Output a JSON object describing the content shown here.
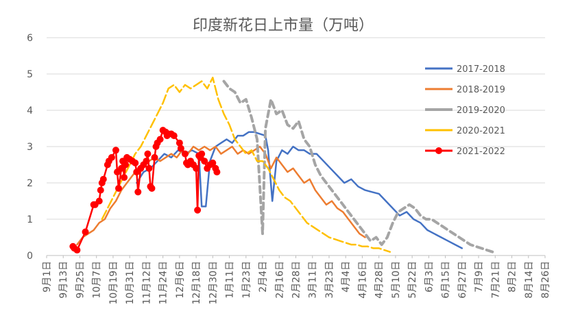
{
  "chart_data": {
    "type": "line",
    "title": "印度新花日上市量（万吨）",
    "xlabel": "",
    "ylabel": "",
    "ylim": [
      0,
      6
    ],
    "yticks": [
      "0",
      "1",
      "2",
      "3",
      "4",
      "5",
      "6"
    ],
    "x_tick_labels": [
      "9月1日",
      "9月13日",
      "9月25日",
      "10月7日",
      "10月19日",
      "10月31日",
      "11月12日",
      "11月24日",
      "12月6日",
      "12月18日",
      "12月30日",
      "1月11日",
      "1月23日",
      "2月4日",
      "2月16日",
      "2月28日",
      "3月11日",
      "3月23日",
      "4月4日",
      "4月16日",
      "4月28日",
      "5月10日",
      "5月22日",
      "6月3日",
      "6月15日",
      "6月27日",
      "7月9日",
      "7月21日",
      "8月2日",
      "8月14日",
      "8月26日"
    ],
    "grid": "horizontal",
    "legend_position": "right",
    "series": [
      {
        "name": "2017-2018",
        "color": "#4472c4",
        "style": "solid",
        "points": [
          [
            65,
            2.0
          ],
          [
            70,
            2.3
          ],
          [
            75,
            2.4
          ],
          [
            80,
            2.6
          ],
          [
            85,
            2.8
          ],
          [
            90,
            2.7
          ],
          [
            95,
            2.9
          ],
          [
            100,
            2.8
          ],
          [
            105,
            2.9
          ],
          [
            110,
            2.8
          ],
          [
            112,
            1.35
          ],
          [
            115,
            1.35
          ],
          [
            118,
            2.6
          ],
          [
            122,
            3.0
          ],
          [
            126,
            3.1
          ],
          [
            130,
            3.2
          ],
          [
            134,
            3.1
          ],
          [
            138,
            3.3
          ],
          [
            142,
            3.3
          ],
          [
            146,
            3.4
          ],
          [
            150,
            3.4
          ],
          [
            154,
            3.35
          ],
          [
            158,
            3.3
          ],
          [
            160,
            2.9
          ],
          [
            163,
            1.5
          ],
          [
            166,
            2.6
          ],
          [
            170,
            2.9
          ],
          [
            174,
            2.8
          ],
          [
            178,
            3.0
          ],
          [
            182,
            2.9
          ],
          [
            186,
            2.9
          ],
          [
            190,
            2.8
          ],
          [
            195,
            2.8
          ],
          [
            200,
            2.6
          ],
          [
            205,
            2.4
          ],
          [
            210,
            2.2
          ],
          [
            215,
            2.0
          ],
          [
            220,
            2.1
          ],
          [
            225,
            1.9
          ],
          [
            230,
            1.8
          ],
          [
            235,
            1.75
          ],
          [
            240,
            1.7
          ],
          [
            245,
            1.5
          ],
          [
            250,
            1.3
          ],
          [
            255,
            1.1
          ],
          [
            260,
            1.2
          ],
          [
            265,
            1.0
          ],
          [
            270,
            0.9
          ],
          [
            275,
            0.7
          ],
          [
            280,
            0.6
          ],
          [
            285,
            0.5
          ],
          [
            290,
            0.4
          ],
          [
            295,
            0.3
          ],
          [
            300,
            0.2
          ]
        ]
      },
      {
        "name": "2018-2019",
        "color": "#ed7d31",
        "style": "solid",
        "points": [
          [
            22,
            0.3
          ],
          [
            26,
            0.5
          ],
          [
            30,
            0.6
          ],
          [
            34,
            0.7
          ],
          [
            38,
            0.9
          ],
          [
            42,
            1.0
          ],
          [
            46,
            1.3
          ],
          [
            50,
            1.5
          ],
          [
            54,
            1.8
          ],
          [
            58,
            2.0
          ],
          [
            62,
            2.2
          ],
          [
            66,
            2.4
          ],
          [
            70,
            2.5
          ],
          [
            74,
            2.6
          ],
          [
            78,
            2.7
          ],
          [
            82,
            2.6
          ],
          [
            86,
            2.7
          ],
          [
            90,
            2.8
          ],
          [
            94,
            2.7
          ],
          [
            98,
            2.9
          ],
          [
            102,
            2.8
          ],
          [
            106,
            3.0
          ],
          [
            110,
            2.9
          ],
          [
            114,
            3.0
          ],
          [
            118,
            2.9
          ],
          [
            122,
            3.0
          ],
          [
            126,
            2.8
          ],
          [
            130,
            2.9
          ],
          [
            134,
            3.0
          ],
          [
            138,
            2.8
          ],
          [
            142,
            2.9
          ],
          [
            146,
            2.8
          ],
          [
            150,
            2.9
          ],
          [
            154,
            3.0
          ],
          [
            158,
            2.8
          ],
          [
            162,
            2.4
          ],
          [
            166,
            2.7
          ],
          [
            170,
            2.5
          ],
          [
            174,
            2.3
          ],
          [
            178,
            2.4
          ],
          [
            182,
            2.2
          ],
          [
            186,
            2.0
          ],
          [
            190,
            2.1
          ],
          [
            194,
            1.8
          ],
          [
            198,
            1.6
          ],
          [
            202,
            1.4
          ],
          [
            206,
            1.5
          ],
          [
            210,
            1.3
          ],
          [
            214,
            1.2
          ],
          [
            218,
            1.0
          ],
          [
            222,
            0.8
          ],
          [
            226,
            0.6
          ],
          [
            230,
            0.5
          ]
        ]
      },
      {
        "name": "2019-2020",
        "color": "#a5a5a5",
        "style": "dashed",
        "points": [
          [
            128,
            4.8
          ],
          [
            132,
            4.6
          ],
          [
            136,
            4.5
          ],
          [
            140,
            4.2
          ],
          [
            144,
            4.3
          ],
          [
            148,
            3.8
          ],
          [
            152,
            3.2
          ],
          [
            156,
            0.6
          ],
          [
            158,
            3.5
          ],
          [
            162,
            4.3
          ],
          [
            166,
            3.9
          ],
          [
            170,
            4.0
          ],
          [
            174,
            3.6
          ],
          [
            178,
            3.5
          ],
          [
            182,
            3.7
          ],
          [
            186,
            3.2
          ],
          [
            190,
            3.0
          ],
          [
            194,
            2.5
          ],
          [
            198,
            2.2
          ],
          [
            202,
            2.0
          ],
          [
            206,
            1.8
          ],
          [
            210,
            1.6
          ],
          [
            214,
            1.4
          ],
          [
            218,
            1.2
          ],
          [
            222,
            1.0
          ],
          [
            226,
            0.8
          ],
          [
            230,
            0.6
          ],
          [
            234,
            0.4
          ],
          [
            238,
            0.5
          ],
          [
            242,
            0.3
          ],
          [
            246,
            0.5
          ],
          [
            250,
            0.9
          ],
          [
            254,
            1.2
          ],
          [
            258,
            1.3
          ],
          [
            262,
            1.4
          ],
          [
            266,
            1.3
          ],
          [
            270,
            1.1
          ],
          [
            274,
            1.0
          ],
          [
            278,
            1.0
          ],
          [
            282,
            0.9
          ],
          [
            286,
            0.8
          ],
          [
            290,
            0.7
          ],
          [
            294,
            0.6
          ],
          [
            298,
            0.5
          ],
          [
            302,
            0.4
          ],
          [
            306,
            0.3
          ],
          [
            310,
            0.25
          ],
          [
            314,
            0.2
          ],
          [
            318,
            0.15
          ],
          [
            322,
            0.1
          ]
        ]
      },
      {
        "name": "2020-2021",
        "color": "#ffc000",
        "style": "solid",
        "points": [
          [
            40,
            1.0
          ],
          [
            44,
            1.3
          ],
          [
            48,
            1.6
          ],
          [
            52,
            1.9
          ],
          [
            56,
            2.2
          ],
          [
            60,
            2.5
          ],
          [
            64,
            2.8
          ],
          [
            68,
            3.0
          ],
          [
            72,
            3.3
          ],
          [
            76,
            3.6
          ],
          [
            80,
            3.9
          ],
          [
            84,
            4.2
          ],
          [
            88,
            4.6
          ],
          [
            92,
            4.7
          ],
          [
            96,
            4.5
          ],
          [
            100,
            4.7
          ],
          [
            104,
            4.6
          ],
          [
            108,
            4.7
          ],
          [
            112,
            4.8
          ],
          [
            116,
            4.6
          ],
          [
            120,
            4.9
          ],
          [
            124,
            4.3
          ],
          [
            128,
            3.9
          ],
          [
            132,
            3.6
          ],
          [
            136,
            3.2
          ],
          [
            140,
            3.0
          ],
          [
            144,
            2.8
          ],
          [
            148,
            2.9
          ],
          [
            152,
            2.6
          ],
          [
            156,
            2.6
          ],
          [
            160,
            2.4
          ],
          [
            164,
            2.1
          ],
          [
            168,
            1.8
          ],
          [
            172,
            1.6
          ],
          [
            176,
            1.5
          ],
          [
            180,
            1.3
          ],
          [
            184,
            1.1
          ],
          [
            188,
            0.9
          ],
          [
            192,
            0.8
          ],
          [
            196,
            0.7
          ],
          [
            200,
            0.6
          ],
          [
            204,
            0.5
          ],
          [
            208,
            0.45
          ],
          [
            212,
            0.4
          ],
          [
            216,
            0.35
          ],
          [
            220,
            0.3
          ],
          [
            224,
            0.3
          ],
          [
            228,
            0.25
          ],
          [
            232,
            0.25
          ],
          [
            236,
            0.2
          ],
          [
            240,
            0.2
          ],
          [
            244,
            0.15
          ],
          [
            248,
            0.1
          ]
        ]
      },
      {
        "name": "2021-2022",
        "color": "#ff0000",
        "style": "solid",
        "points": [
          [
            19,
            0.25
          ],
          [
            20,
            0.2
          ],
          [
            22,
            0.15
          ],
          [
            28,
            0.65
          ],
          [
            34,
            1.4
          ],
          [
            35,
            1.4
          ],
          [
            38,
            1.5
          ],
          [
            39,
            1.8
          ],
          [
            40,
            2.0
          ],
          [
            41,
            2.1
          ],
          [
            44,
            2.5
          ],
          [
            45,
            2.6
          ],
          [
            47,
            2.7
          ],
          [
            50,
            2.9
          ],
          [
            51,
            2.3
          ],
          [
            52,
            1.85
          ],
          [
            54,
            2.4
          ],
          [
            55,
            2.6
          ],
          [
            56,
            2.15
          ],
          [
            57,
            2.5
          ],
          [
            58,
            2.7
          ],
          [
            60,
            2.65
          ],
          [
            62,
            2.6
          ],
          [
            64,
            2.55
          ],
          [
            65,
            2.3
          ],
          [
            66,
            1.75
          ],
          [
            68,
            2.4
          ],
          [
            70,
            2.5
          ],
          [
            72,
            2.6
          ],
          [
            73,
            2.8
          ],
          [
            74,
            2.4
          ],
          [
            75,
            1.9
          ],
          [
            76,
            1.85
          ],
          [
            78,
            2.7
          ],
          [
            79,
            3.0
          ],
          [
            80,
            3.1
          ],
          [
            82,
            3.2
          ],
          [
            84,
            3.45
          ],
          [
            86,
            3.4
          ],
          [
            87,
            3.3
          ],
          [
            88,
            3.35
          ],
          [
            90,
            3.35
          ],
          [
            92,
            3.3
          ],
          [
            96,
            3.1
          ],
          [
            97,
            2.95
          ],
          [
            100,
            2.8
          ],
          [
            101,
            2.55
          ],
          [
            102,
            2.5
          ],
          [
            104,
            2.6
          ],
          [
            106,
            2.5
          ],
          [
            108,
            2.4
          ],
          [
            109,
            1.25
          ],
          [
            110,
            2.75
          ],
          [
            111,
            2.7
          ],
          [
            112,
            2.8
          ],
          [
            114,
            2.6
          ],
          [
            116,
            2.4
          ],
          [
            118,
            2.5
          ],
          [
            120,
            2.55
          ],
          [
            122,
            2.4
          ],
          [
            123,
            2.3
          ]
        ]
      }
    ]
  }
}
